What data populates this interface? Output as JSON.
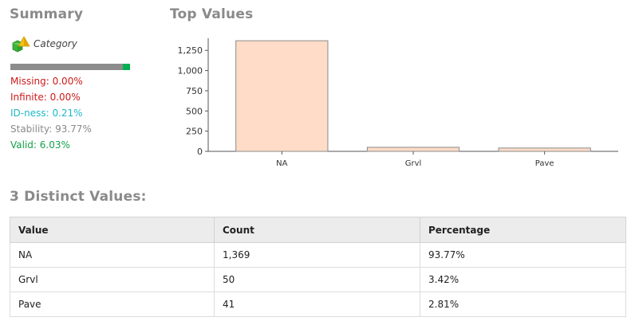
{
  "summary": {
    "title": "Summary",
    "type_label": "Category",
    "valid_fraction": 0.0603,
    "stats": {
      "missing": "Missing: 0.00%",
      "infinite": "Infinite: 0.00%",
      "idness": "ID-ness: 0.21%",
      "stability": "Stability: 93.77%",
      "valid": "Valid: 6.03%"
    },
    "colors": {
      "missing": "#cc1a1a",
      "idness": "#1fb7c9",
      "stability": "#8a8a8a",
      "valid": "#15a04a",
      "bar": "#8c8c8c",
      "bar_valid": "#00b050"
    }
  },
  "top_values": {
    "title": "Top Values",
    "chart_data": {
      "type": "bar",
      "categories": [
        "NA",
        "Grvl",
        "Pave"
      ],
      "values": [
        1369,
        50,
        41
      ],
      "yticks": [
        0,
        250,
        500,
        750,
        1000,
        1250
      ],
      "ytick_labels": [
        "0",
        "250",
        "500",
        "750",
        "1,000",
        "1,250"
      ],
      "ylim": [
        0,
        1400
      ],
      "bar_color": "#ffdcc8",
      "bar_stroke": "#8a8a8a",
      "grid": false
    }
  },
  "distinct": {
    "title": "3 Distinct Values:",
    "columns": [
      "Value",
      "Count",
      "Percentage"
    ],
    "rows": [
      [
        "NA",
        "1,369",
        "93.77%"
      ],
      [
        "Grvl",
        "50",
        "3.42%"
      ],
      [
        "Pave",
        "41",
        "2.81%"
      ]
    ]
  }
}
